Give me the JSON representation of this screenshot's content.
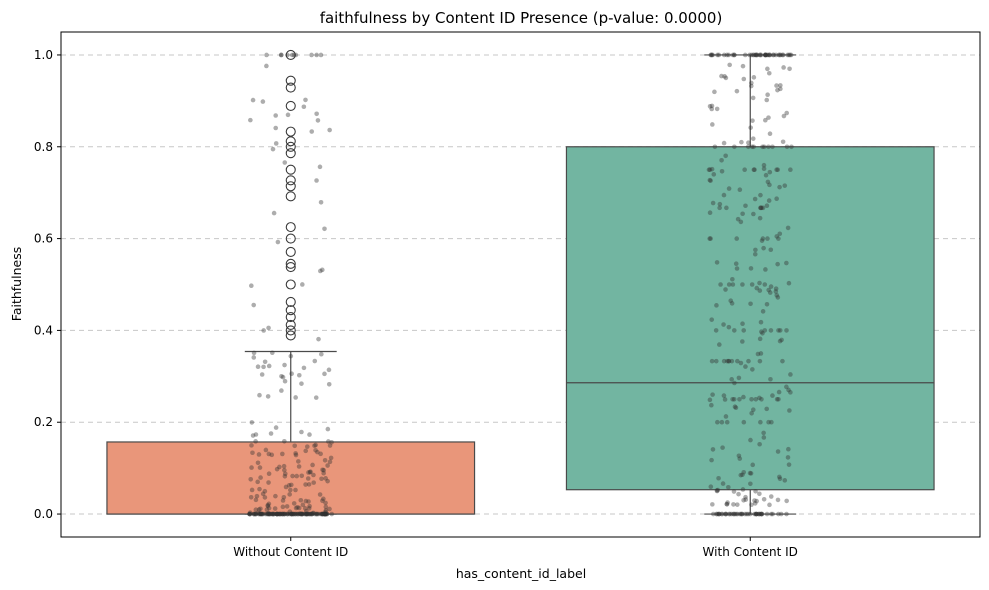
{
  "chart_data": {
    "type": "box",
    "title": "faithfulness by Content ID Presence (p-value: 0.0000)",
    "xlabel": "has_content_id_label",
    "ylabel": "Faithfulness",
    "ylim": [
      -0.05,
      1.05
    ],
    "yticks": [
      "0.0",
      "0.2",
      "0.4",
      "0.6",
      "0.8",
      "1.0"
    ],
    "ytick_values": [
      0.0,
      0.2,
      0.4,
      0.6,
      0.8,
      1.0
    ],
    "grid": "y-dashed",
    "categories": [
      "Without Content ID",
      "With Content ID"
    ],
    "boxes": [
      {
        "category": "Without Content ID",
        "color": "#E9967A",
        "whisker_low": 0.0,
        "q1": 0.0,
        "median": 0.0,
        "q3": 0.157,
        "whisker_high": 0.354,
        "outliers": [
          1.0,
          0.944,
          0.929,
          0.889,
          0.833,
          0.812,
          0.8,
          0.786,
          0.75,
          0.727,
          0.714,
          0.692,
          0.625,
          0.6,
          0.571,
          0.545,
          0.538,
          0.5,
          0.462,
          0.444,
          0.429,
          0.412,
          0.4,
          0.389
        ]
      },
      {
        "category": "With Content ID",
        "color": "#72B5A1",
        "whisker_low": 0.0,
        "q1": 0.053,
        "median": 0.286,
        "q3": 0.8,
        "whisker_high": 1.0,
        "outliers": []
      }
    ]
  }
}
